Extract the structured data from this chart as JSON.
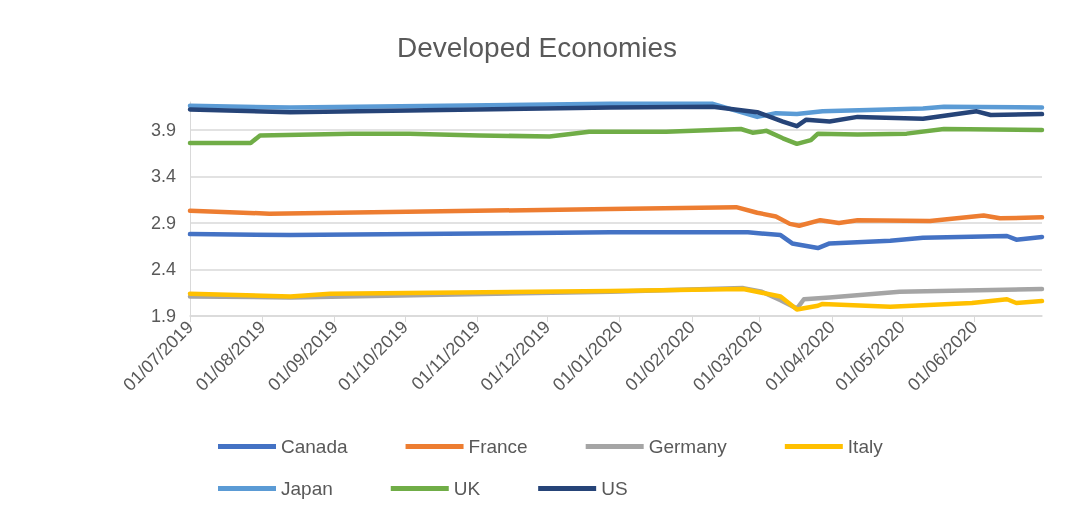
{
  "chart_data": {
    "type": "line",
    "title": "Developed Economies",
    "xlim": [
      "2019-07-01",
      "2020-06-30"
    ],
    "xticks": [
      {
        "value": "2019-07-01",
        "label": "01/07/2019"
      },
      {
        "value": "2019-08-01",
        "label": "01/08/2019"
      },
      {
        "value": "2019-09-01",
        "label": "01/09/2019"
      },
      {
        "value": "2019-10-01",
        "label": "01/10/2019"
      },
      {
        "value": "2019-11-01",
        "label": "01/11/2019"
      },
      {
        "value": "2019-12-01",
        "label": "01/12/2019"
      },
      {
        "value": "2020-01-01",
        "label": "01/01/2020"
      },
      {
        "value": "2020-02-01",
        "label": "01/02/2020"
      },
      {
        "value": "2020-03-01",
        "label": "01/03/2020"
      },
      {
        "value": "2020-04-01",
        "label": "01/04/2020"
      },
      {
        "value": "2020-05-01",
        "label": "01/05/2020"
      },
      {
        "value": "2020-06-01",
        "label": "01/06/2020"
      }
    ],
    "ylim": [
      1.9,
      4.2
    ],
    "yticks": [
      1.9,
      2.4,
      2.9,
      3.4,
      3.9
    ],
    "grid": "y",
    "legend": "bottom",
    "marker": "none",
    "line_style": "solid",
    "series": [
      {
        "name": "Canada",
        "color": "#4472c4",
        "x": [
          "2019-07-01",
          "2019-08-13",
          "2019-12-28",
          "2020-02-25",
          "2020-03-10",
          "2020-03-15",
          "2020-03-26",
          "2020-03-31",
          "2020-04-26",
          "2020-05-10",
          "2020-06-15",
          "2020-06-19",
          "2020-06-30"
        ],
        "values": [
          2.78,
          2.77,
          2.8,
          2.8,
          2.77,
          2.68,
          2.63,
          2.68,
          2.71,
          2.74,
          2.76,
          2.72,
          2.75
        ]
      },
      {
        "name": "France",
        "color": "#ed7d31",
        "x": [
          "2019-07-01",
          "2019-08-04",
          "2019-12-28",
          "2020-02-20",
          "2020-02-29",
          "2020-03-08",
          "2020-03-14",
          "2020-03-18",
          "2020-03-27",
          "2020-04-04",
          "2020-04-12",
          "2020-05-13",
          "2020-06-05",
          "2020-06-12",
          "2020-06-30"
        ],
        "values": [
          3.03,
          3.0,
          3.05,
          3.07,
          3.01,
          2.97,
          2.89,
          2.87,
          2.93,
          2.9,
          2.93,
          2.92,
          2.98,
          2.95,
          2.96
        ]
      },
      {
        "name": "Germany",
        "color": "#a5a5a5",
        "x": [
          "2019-07-01",
          "2019-08-13",
          "2019-12-28",
          "2020-02-23",
          "2020-03-02",
          "2020-03-10",
          "2020-03-17",
          "2020-03-20",
          "2020-03-31",
          "2020-04-30",
          "2020-06-30"
        ],
        "values": [
          2.11,
          2.1,
          2.16,
          2.2,
          2.16,
          2.07,
          1.98,
          2.08,
          2.1,
          2.16,
          2.19
        ]
      },
      {
        "name": "Italy",
        "color": "#ffc000",
        "x": [
          "2019-07-01",
          "2019-08-13",
          "2019-08-30",
          "2019-12-28",
          "2020-02-23",
          "2020-03-02",
          "2020-03-10",
          "2020-03-17",
          "2020-03-26",
          "2020-03-28",
          "2020-04-26",
          "2020-05-31",
          "2020-06-15",
          "2020-06-19",
          "2020-06-30"
        ],
        "values": [
          2.14,
          2.11,
          2.14,
          2.17,
          2.19,
          2.15,
          2.11,
          1.97,
          2.01,
          2.03,
          2.0,
          2.04,
          2.08,
          2.04,
          2.06
        ]
      },
      {
        "name": "Japan",
        "color": "#5b9bd5",
        "x": [
          "2019-07-01",
          "2019-08-13",
          "2019-12-28",
          "2020-02-10",
          "2020-02-29",
          "2020-03-08",
          "2020-03-17",
          "2020-03-28",
          "2020-05-10",
          "2020-05-19",
          "2020-06-30"
        ],
        "values": [
          4.16,
          4.14,
          4.18,
          4.18,
          4.04,
          4.08,
          4.07,
          4.1,
          4.13,
          4.15,
          4.14
        ]
      },
      {
        "name": "UK",
        "color": "#70ad47",
        "x": [
          "2019-07-01",
          "2019-07-27",
          "2019-07-31",
          "2019-09-08",
          "2019-10-03",
          "2019-11-02",
          "2019-12-02",
          "2019-12-19",
          "2020-01-21",
          "2020-02-22",
          "2020-02-27",
          "2020-03-04",
          "2020-03-11",
          "2020-03-17",
          "2020-03-23",
          "2020-03-26",
          "2020-04-12",
          "2020-05-03",
          "2020-05-19",
          "2020-06-30"
        ],
        "values": [
          3.76,
          3.76,
          3.84,
          3.86,
          3.86,
          3.84,
          3.83,
          3.88,
          3.88,
          3.91,
          3.87,
          3.89,
          3.81,
          3.75,
          3.79,
          3.86,
          3.85,
          3.86,
          3.91,
          3.9
        ]
      },
      {
        "name": "US",
        "color": "#264478",
        "x": [
          "2019-07-01",
          "2019-08-13",
          "2019-12-28",
          "2020-02-10",
          "2020-02-29",
          "2020-03-11",
          "2020-03-17",
          "2020-03-21",
          "2020-03-31",
          "2020-04-12",
          "2020-05-10",
          "2020-06-02",
          "2020-06-08",
          "2020-06-30"
        ],
        "values": [
          4.12,
          4.09,
          4.14,
          4.15,
          4.09,
          3.99,
          3.94,
          4.01,
          3.99,
          4.04,
          4.02,
          4.1,
          4.06,
          4.07
        ]
      }
    ]
  }
}
